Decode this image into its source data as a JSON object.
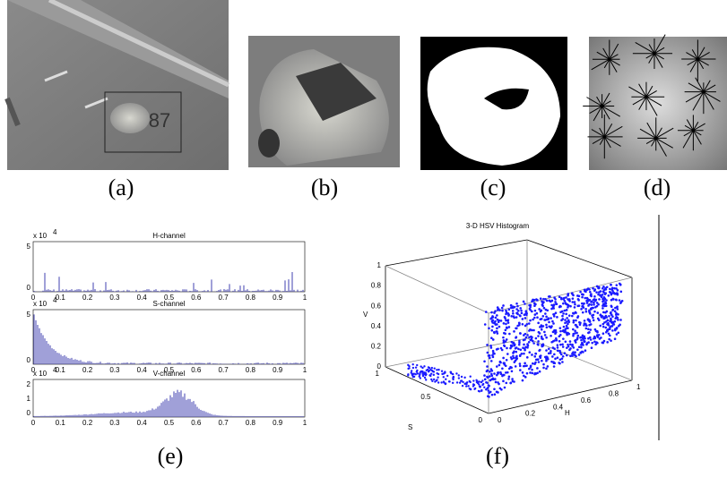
{
  "figure": {
    "panels": [
      {
        "label": "(a)",
        "overlay": "87"
      },
      {
        "label": "(b)"
      },
      {
        "label": "(c)"
      },
      {
        "label": "(d)"
      },
      {
        "label": "(e)"
      },
      {
        "label": "(f)"
      }
    ],
    "histograms": {
      "exponent_base": "x 10",
      "exponent": "4",
      "xticks": [
        "0",
        "0.1",
        "0.2",
        "0.3",
        "0.4",
        "0.5",
        "0.6",
        "0.7",
        "0.8",
        "0.9",
        "1"
      ],
      "channels": [
        {
          "title": "H-channel",
          "yticks": [
            "0",
            "5"
          ]
        },
        {
          "title": "S-channel",
          "yticks": [
            "0",
            "5"
          ]
        },
        {
          "title": "V-channel",
          "yticks": [
            "0",
            "1",
            "2"
          ]
        }
      ]
    },
    "plot3d": {
      "title": "3-D HSV Histogram",
      "zlabel": "V",
      "xlabel": "H",
      "ylabel": "S",
      "vticks": [
        "0",
        "0.2",
        "0.4",
        "0.6",
        "0.8",
        "1"
      ],
      "hticks": [
        "0",
        "0.2",
        "0.4",
        "0.6",
        "0.8",
        "1"
      ],
      "sticks": [
        "0",
        "0.5",
        "1"
      ]
    }
  }
}
